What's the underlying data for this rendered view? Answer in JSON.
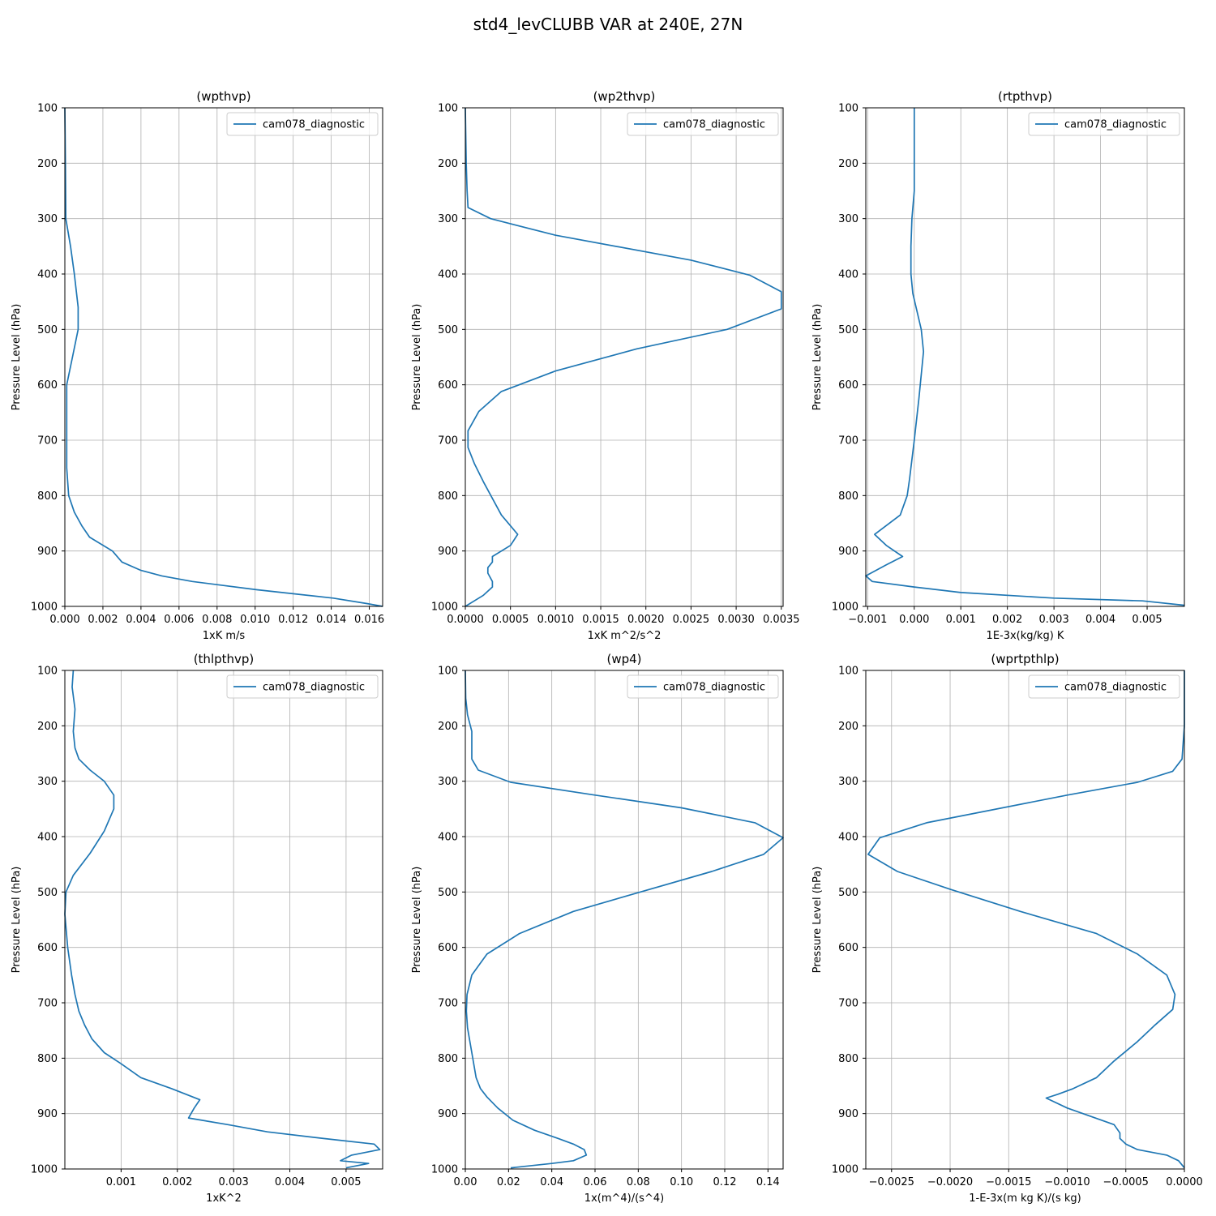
{
  "figure_title": "std4_levCLUBB VAR at 240E, 27N",
  "colors": {
    "series": "#1f77b4"
  },
  "chart_data": [
    {
      "type": "line",
      "title": "(wpthvp)",
      "xlabel": "1xK m/s",
      "ylabel": "Pressure Level (hPa)",
      "xlim": [
        0,
        0.0167
      ],
      "ylim": [
        1000,
        100
      ],
      "y_inverted": true,
      "xticks": [
        "0.000",
        "0.002",
        "0.004",
        "0.006",
        "0.008",
        "0.010",
        "0.012",
        "0.014",
        "0.016"
      ],
      "xtick_values": [
        0,
        0.002,
        0.004,
        0.006,
        0.008,
        0.01,
        0.012,
        0.014,
        0.016
      ],
      "yticks": [
        "100",
        "200",
        "300",
        "400",
        "500",
        "600",
        "700",
        "800",
        "900",
        "1000"
      ],
      "grid": true,
      "legend_position": "upper-right",
      "series": [
        {
          "name": "cam078_diagnostic",
          "x": [
            0.0,
            3e-05,
            5e-05,
            0.0003,
            0.0005,
            0.0007,
            0.0007,
            0.0004,
            0.0001,
            0.0001,
            0.0001,
            0.0002,
            0.0005,
            0.0009,
            0.0013,
            0.0025,
            0.003,
            0.004,
            0.0051,
            0.0067,
            0.0101,
            0.0141,
            0.0159,
            0.0167
          ],
          "y": [
            100,
            200,
            300,
            350,
            400,
            460,
            500,
            550,
            600,
            650,
            750,
            800,
            830,
            855,
            875,
            900,
            920,
            935,
            945,
            955,
            970,
            985,
            995,
            1000
          ]
        }
      ]
    },
    {
      "type": "line",
      "title": "(wp2thvp)",
      "xlabel": "1xK m^2/s^2",
      "ylabel": "Pressure Level (hPa)",
      "xlim": [
        0,
        0.00352
      ],
      "ylim": [
        1000,
        100
      ],
      "y_inverted": true,
      "xticks": [
        "0.0000",
        "0.0005",
        "0.0010",
        "0.0015",
        "0.0020",
        "0.0025",
        "0.0030",
        "0.0035"
      ],
      "xtick_values": [
        0,
        0.0005,
        0.001,
        0.0015,
        0.002,
        0.0025,
        0.003,
        0.0035
      ],
      "yticks": [
        "100",
        "200",
        "300",
        "400",
        "500",
        "600",
        "700",
        "800",
        "900",
        "1000"
      ],
      "grid": true,
      "legend_position": "upper-right",
      "series": [
        {
          "name": "cam078_diagnostic",
          "x": [
            0.0,
            1e-05,
            2e-05,
            3e-05,
            0.00028,
            0.001,
            0.0025,
            0.00315,
            0.0035,
            0.0035,
            0.0029,
            0.0019,
            0.001,
            0.0004,
            0.00015,
            3e-05,
            3e-05,
            0.0001,
            0.0002,
            0.0003,
            0.0004,
            0.00058,
            0.0005,
            0.0003,
            0.0003,
            0.00025,
            0.00025,
            0.0003,
            0.0003,
            0.0002,
            0.0001,
            0.0
          ],
          "y": [
            100,
            200,
            250,
            280,
            300,
            330,
            375,
            402,
            432,
            463,
            500,
            535,
            575,
            612,
            648,
            683,
            713,
            742,
            775,
            805,
            835,
            870,
            890,
            910,
            920,
            930,
            940,
            955,
            965,
            980,
            990,
            1000
          ]
        }
      ]
    },
    {
      "type": "line",
      "title": "(rtpthvp)",
      "xlabel": "1E-3x(kg/kg) K",
      "ylabel": "Pressure Level (hPa)",
      "xlim": [
        -0.00104,
        0.0058
      ],
      "ylim": [
        1000,
        100
      ],
      "y_inverted": true,
      "xticks": [
        "−0.001",
        "0.000",
        "0.001",
        "0.002",
        "0.003",
        "0.004",
        "0.005"
      ],
      "xtick_values": [
        -0.001,
        0,
        0.001,
        0.002,
        0.003,
        0.004,
        0.005
      ],
      "yticks": [
        "100",
        "200",
        "300",
        "400",
        "500",
        "600",
        "700",
        "800",
        "900",
        "1000"
      ],
      "grid": true,
      "legend_position": "upper-right",
      "series": [
        {
          "name": "cam078_diagnostic",
          "x": [
            0.0,
            0.0,
            0.0,
            -5e-05,
            -7e-05,
            -7e-05,
            -3e-05,
            0.00015,
            0.0002,
            0.0001,
            0.0,
            -0.0001,
            -0.00015,
            -0.0003,
            -0.00085,
            -0.0006,
            -0.00025,
            -0.0006,
            -0.00104,
            -0.0009,
            0.0,
            0.001,
            0.003,
            0.0049,
            0.0058
          ],
          "y": [
            100,
            200,
            250,
            300,
            350,
            400,
            435,
            500,
            540,
            625,
            700,
            770,
            800,
            835,
            870,
            890,
            910,
            925,
            945,
            955,
            965,
            975,
            985,
            990,
            998
          ]
        }
      ]
    },
    {
      "type": "line",
      "title": "(thlpthvp)",
      "xlabel": "1xK^2",
      "ylabel": "Pressure Level (hPa)",
      "xlim": [
        0,
        0.00565
      ],
      "ylim": [
        1000,
        100
      ],
      "y_inverted": true,
      "xticks": [
        "0.001",
        "0.002",
        "0.003",
        "0.004",
        "0.005"
      ],
      "xtick_values": [
        0.001,
        0.002,
        0.003,
        0.004,
        0.005
      ],
      "yticks": [
        "100",
        "200",
        "300",
        "400",
        "500",
        "600",
        "700",
        "800",
        "900",
        "1000"
      ],
      "grid": true,
      "legend_position": "upper-right",
      "series": [
        {
          "name": "cam078_diagnostic",
          "x": [
            0.00015,
            0.00013,
            0.00018,
            0.00015,
            0.00018,
            0.00025,
            0.00045,
            0.0007,
            0.00087,
            0.00087,
            0.0007,
            0.00045,
            0.00015,
            2e-05,
            0.0,
            5e-05,
            0.00012,
            0.00018,
            0.00025,
            0.00035,
            0.00048,
            0.0007,
            0.001,
            0.00135,
            0.0019,
            0.0024,
            0.0023,
            0.0022,
            0.0029,
            0.0036,
            0.0046,
            0.0055,
            0.0056,
            0.0051,
            0.0049,
            0.0054,
            0.005
          ],
          "y": [
            100,
            130,
            170,
            210,
            240,
            260,
            280,
            300,
            325,
            350,
            390,
            430,
            470,
            500,
            540,
            600,
            650,
            685,
            715,
            740,
            765,
            790,
            810,
            835,
            855,
            875,
            890,
            908,
            920,
            933,
            945,
            955,
            965,
            975,
            985,
            990,
            998
          ]
        }
      ]
    },
    {
      "type": "line",
      "title": "(wp4)",
      "xlabel": "1x(m^4)/(s^4)",
      "ylabel": "Pressure Level (hPa)",
      "xlim": [
        0,
        0.147
      ],
      "ylim": [
        1000,
        100
      ],
      "y_inverted": true,
      "xticks": [
        "0.00",
        "0.02",
        "0.04",
        "0.06",
        "0.08",
        "0.10",
        "0.12",
        "0.14"
      ],
      "xtick_values": [
        0,
        0.02,
        0.04,
        0.06,
        0.08,
        0.1,
        0.12,
        0.14
      ],
      "yticks": [
        "100",
        "200",
        "300",
        "400",
        "500",
        "600",
        "700",
        "800",
        "900",
        "1000"
      ],
      "grid": true,
      "legend_position": "upper-right",
      "series": [
        {
          "name": "cam078_diagnostic",
          "x": [
            0.0,
            0.0002,
            0.001,
            0.003,
            0.003,
            0.006,
            0.021,
            0.06,
            0.1,
            0.134,
            0.147,
            0.138,
            0.114,
            0.081,
            0.05,
            0.025,
            0.01,
            0.003,
            0.0008,
            0.0005,
            0.001,
            0.003,
            0.005,
            0.007,
            0.01,
            0.015,
            0.022,
            0.032,
            0.043,
            0.05,
            0.055,
            0.056,
            0.05,
            0.04,
            0.021
          ],
          "y": [
            100,
            150,
            180,
            210,
            260,
            280,
            302,
            325,
            348,
            375,
            402,
            432,
            463,
            500,
            535,
            575,
            612,
            650,
            685,
            715,
            745,
            790,
            835,
            855,
            870,
            890,
            912,
            930,
            945,
            955,
            965,
            975,
            985,
            990,
            998
          ]
        }
      ]
    },
    {
      "type": "line",
      "title": "(wprtpthlp)",
      "xlabel": "1-E-3x(m kg K)/(s kg)",
      "ylabel": "Pressure Level (hPa)",
      "xlim": [
        -0.00272,
        0.0
      ],
      "ylim": [
        1000,
        100
      ],
      "y_inverted": true,
      "xticks": [
        "−0.0025",
        "−0.0020",
        "−0.0015",
        "−0.0010",
        "−0.0005",
        "0.0000"
      ],
      "xtick_values": [
        -0.0025,
        -0.002,
        -0.0015,
        -0.001,
        -0.0005,
        0.0
      ],
      "yticks": [
        "100",
        "200",
        "300",
        "400",
        "500",
        "600",
        "700",
        "800",
        "900",
        "1000"
      ],
      "grid": true,
      "legend_position": "upper-right",
      "series": [
        {
          "name": "cam078_diagnostic",
          "x": [
            0.0,
            0.0,
            -2e-05,
            -0.0001,
            -0.0004,
            -0.001,
            -0.0022,
            -0.0026,
            -0.0027,
            -0.00245,
            -0.002,
            -0.0014,
            -0.00075,
            -0.0004,
            -0.00015,
            -8e-05,
            -0.0001,
            -0.00025,
            -0.0004,
            -0.0006,
            -0.00075,
            -0.00095,
            -0.00108,
            -0.00118,
            -0.001,
            -0.0008,
            -0.0006,
            -0.00055,
            -0.00055,
            -0.0005,
            -0.0004,
            -0.00015,
            -5e-05,
            0.0
          ],
          "y": [
            100,
            200,
            260,
            282,
            302,
            325,
            375,
            402,
            432,
            463,
            495,
            535,
            575,
            612,
            650,
            685,
            712,
            740,
            770,
            805,
            835,
            855,
            865,
            872,
            890,
            905,
            920,
            935,
            945,
            955,
            965,
            975,
            985,
            998
          ]
        }
      ]
    }
  ]
}
